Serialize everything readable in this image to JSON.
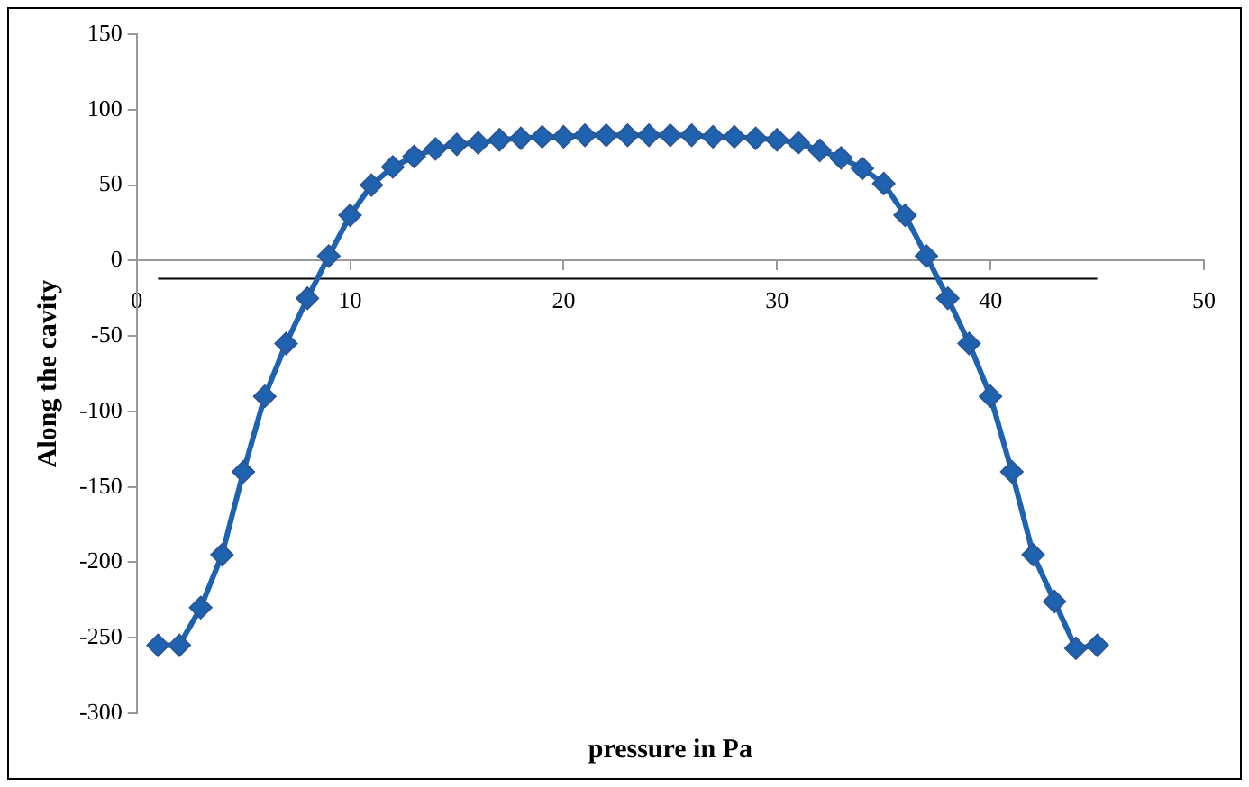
{
  "chart_data": {
    "type": "line",
    "xlabel": "pressure in Pa",
    "ylabel": "Along the cavity",
    "x": [
      1,
      2,
      3,
      4,
      5,
      6,
      7,
      8,
      9,
      10,
      11,
      12,
      13,
      14,
      15,
      16,
      17,
      18,
      19,
      20,
      21,
      22,
      23,
      24,
      25,
      26,
      27,
      28,
      29,
      30,
      31,
      32,
      33,
      34,
      35,
      36,
      37,
      38,
      39,
      40,
      41,
      42,
      43,
      44,
      45
    ],
    "series": [
      {
        "color": "#1f63b0",
        "marker": "diamond",
        "values": [
          -255,
          -255,
          -230,
          -195,
          -140,
          -90,
          -55,
          -25,
          3,
          30,
          50,
          62,
          69,
          74,
          77,
          78,
          80,
          81,
          82,
          82,
          83,
          83,
          83,
          83,
          83,
          83,
          82,
          82,
          81,
          80,
          78,
          73,
          68,
          61,
          51,
          30,
          3,
          -25,
          -55,
          -90,
          -140,
          -195,
          -226,
          -257,
          -255
        ]
      },
      {
        "type": "line",
        "color": "#000000",
        "marker": "none",
        "x": [
          1,
          45
        ],
        "values": [
          -12,
          -12
        ]
      }
    ],
    "xlim": [
      0,
      50
    ],
    "xticks": [
      0,
      10,
      20,
      30,
      40,
      50
    ],
    "ylim": [
      -300,
      150
    ],
    "yticks": [
      -300,
      -250,
      -200,
      -150,
      -100,
      -50,
      0,
      50,
      100,
      150
    ],
    "grid": false,
    "legend": false
  }
}
